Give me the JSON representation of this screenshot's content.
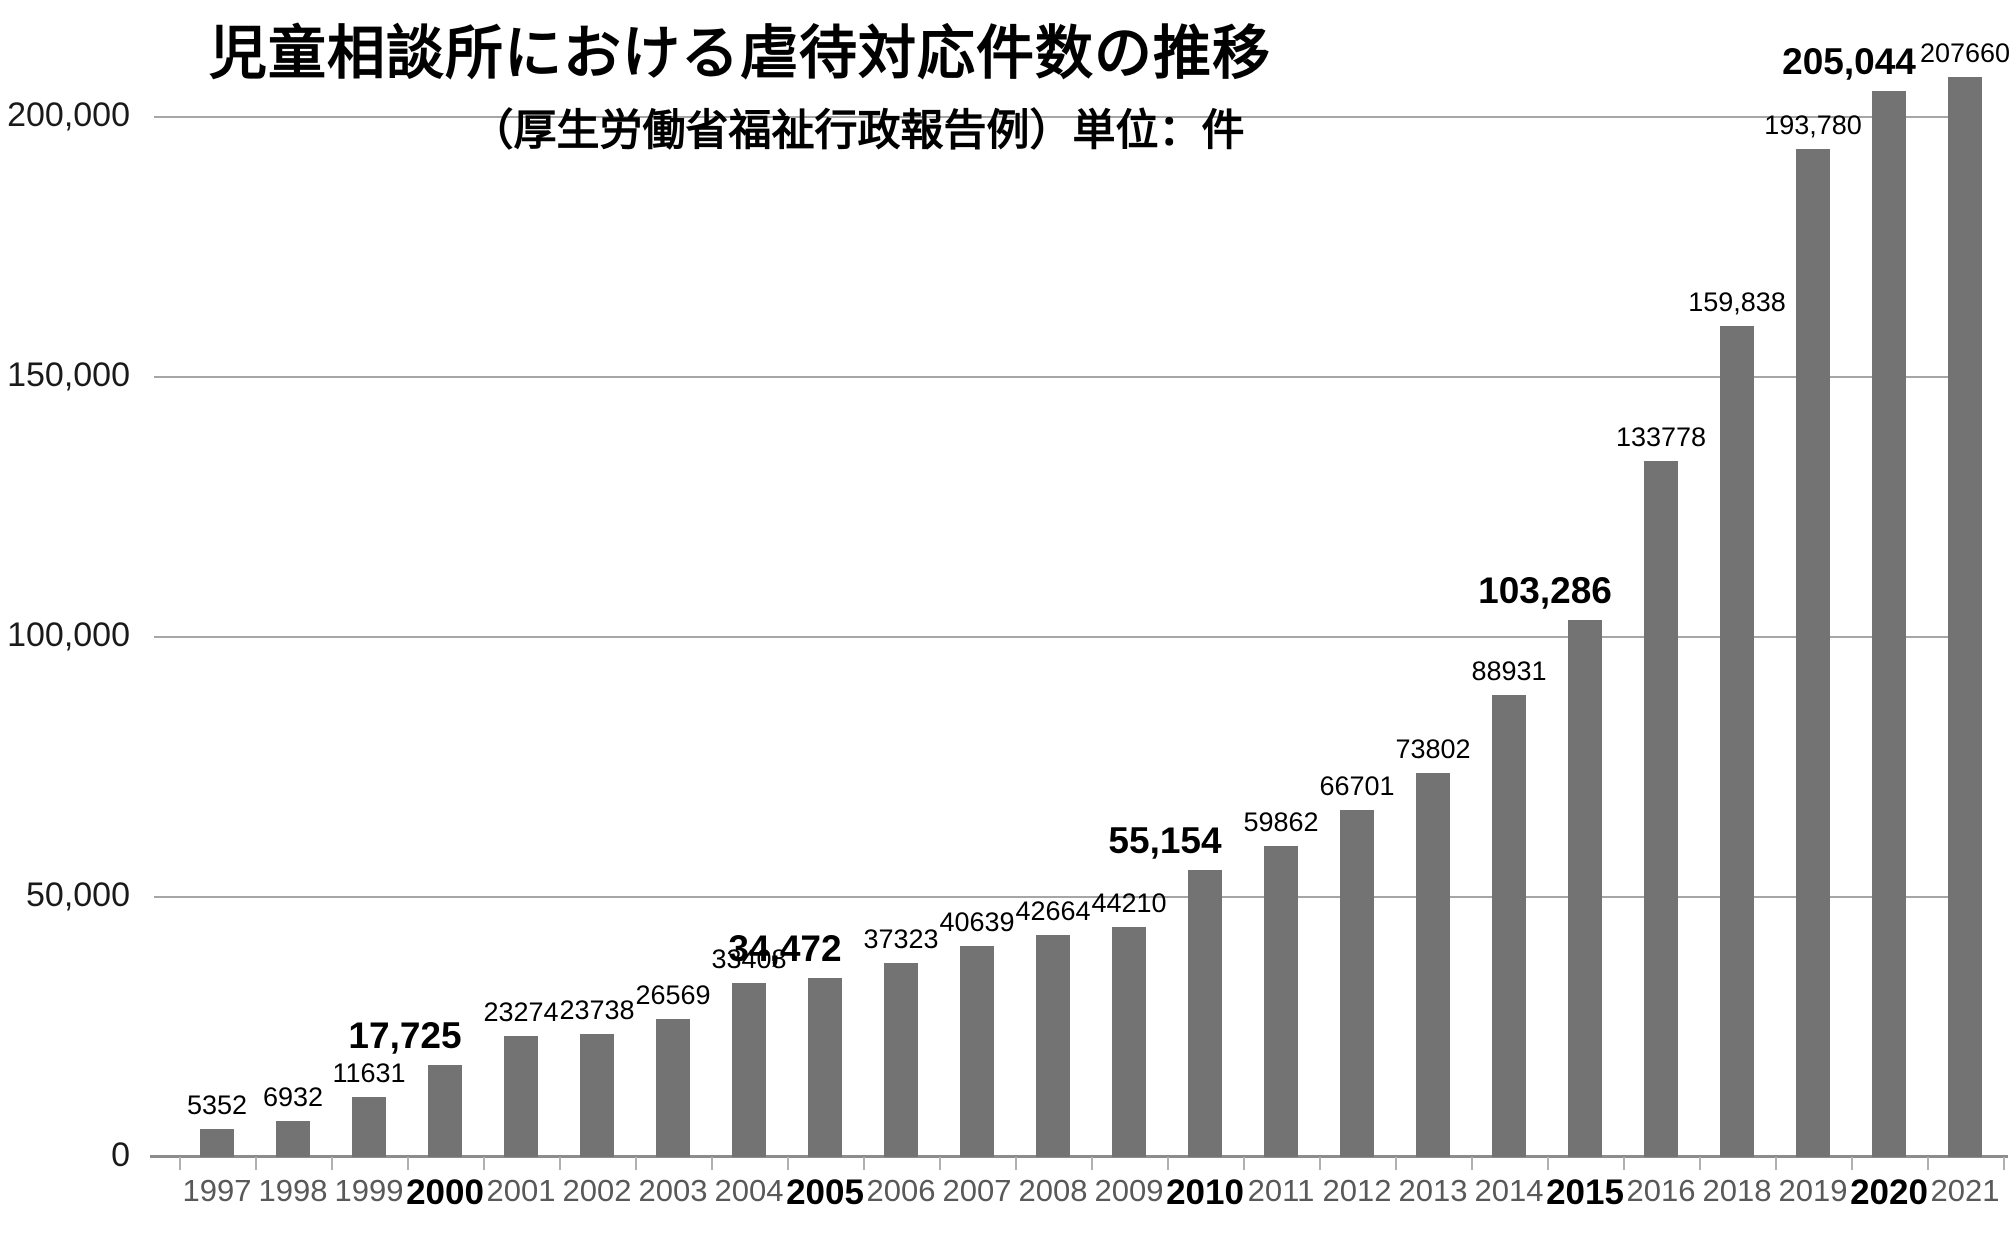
{
  "page": {
    "title": "児童相談所における虐待対応件数の推移",
    "subtitle": "（厚生労働省福祉行政報告例）単位：件"
  },
  "chart_data": {
    "type": "bar",
    "title": "児童相談所における虐待対応件数の推移",
    "subtitle": "（厚生労働省福祉行政報告例）単位：件",
    "unit": "件",
    "categories": [
      "1997",
      "1998",
      "1999",
      "2000",
      "2001",
      "2002",
      "2003",
      "2004",
      "2005",
      "2006",
      "2007",
      "2008",
      "2009",
      "2010",
      "2011",
      "2012",
      "2013",
      "2014",
      "2015",
      "2016",
      "2018",
      "2019",
      "2020",
      "2021"
    ],
    "values": [
      5352,
      6932,
      11631,
      17725,
      23274,
      23738,
      26569,
      33408,
      34472,
      37323,
      40639,
      42664,
      44210,
      55154,
      59862,
      66701,
      73802,
      88931,
      103286,
      133778,
      159838,
      193780,
      205044,
      207660
    ],
    "value_labels": [
      "5352",
      "6932",
      "11631",
      "17,725",
      "23274",
      "23738",
      "26569",
      "33408",
      "34,472",
      "37323",
      "40639",
      "42664",
      "44210",
      "55,154",
      "59862",
      "66701",
      "73802",
      "88931",
      "103,286",
      "133778",
      "159,838",
      "193,780",
      "205,044",
      "207660"
    ],
    "emphasized_categories": [
      "2000",
      "2005",
      "2010",
      "2015",
      "2020"
    ],
    "ylim": [
      0,
      210000
    ],
    "yticks": [
      {
        "value": 0,
        "label": "0"
      },
      {
        "value": 50000,
        "label": "50,000"
      },
      {
        "value": 100000,
        "label": "100,000"
      },
      {
        "value": 150000,
        "label": "150,000"
      },
      {
        "value": 200000,
        "label": "200,000"
      }
    ],
    "grid": true,
    "legend": false,
    "colors": {
      "bar": "#737373",
      "gridline": "#a6a6a6",
      "axis_line": "#8c8c8c",
      "axis_tick": "#b0b0b0",
      "value_label": "#000000",
      "year_label": "#595959",
      "year_label_emphasis": "#000000",
      "y_label": "#1a1a1a",
      "background": "#ffffff"
    }
  }
}
